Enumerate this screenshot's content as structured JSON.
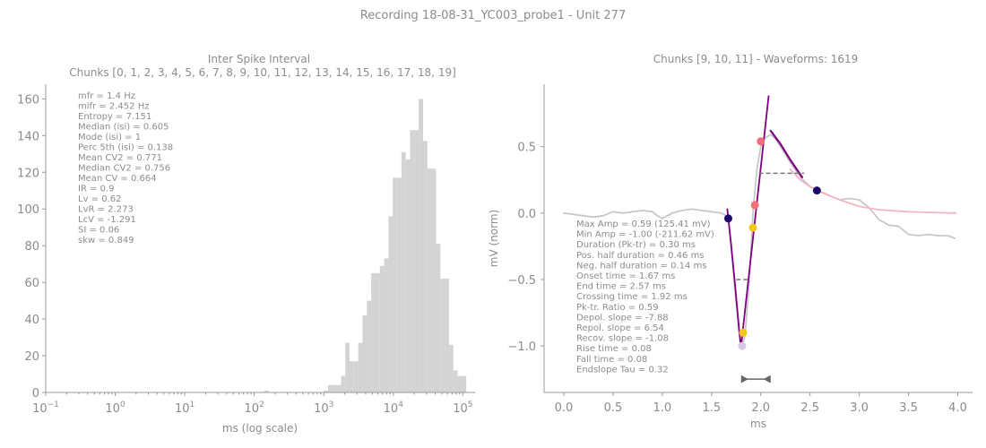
{
  "figure": {
    "suptitle": "Recording 18-08-31_YC003_probe1 - Unit 277"
  },
  "chart_data": [
    {
      "type": "bar",
      "title": "Inter Spike Interval",
      "subtitle": "Chunks [0, 1, 2, 3, 4, 5, 6, 7, 8, 9, 10, 11, 12, 13, 14, 15, 16, 17, 18, 19]",
      "xlabel": "ms (log scale)",
      "ylabel": "",
      "xscale": "log",
      "xlim": [
        0.1,
        150000
      ],
      "ylim": [
        0,
        168
      ],
      "xtick_labels": [
        {
          "base": "10",
          "exp": "−1",
          "value": 0.1
        },
        {
          "base": "10",
          "exp": "0",
          "value": 1
        },
        {
          "base": "10",
          "exp": "1",
          "value": 10
        },
        {
          "base": "10",
          "exp": "2",
          "value": 100
        },
        {
          "base": "10",
          "exp": "3",
          "value": 1000
        },
        {
          "base": "10",
          "exp": "4",
          "value": 10000
        },
        {
          "base": "10",
          "exp": "5",
          "value": 100000
        }
      ],
      "yticks": [
        "0",
        "20",
        "40",
        "60",
        "80",
        "100",
        "120",
        "140",
        "160"
      ],
      "bar_color": "#d3d3d3",
      "stats": [
        "mfr = 1.4 Hz",
        "mifr = 2.452 Hz",
        "Entropy = 7.151",
        "Median (isi) = 0.605",
        "Mode (isi) = 1",
        "Perc 5th (isi) = 0.138",
        "Mean CV2 = 0.771",
        "Median CV2 = 0.756",
        "Mean CV = 0.664",
        "IR = 0.9",
        "Lv = 0.62",
        "LvR = 2.273",
        "LcV = -1.291",
        "SI = 0.06",
        "skw = 0.849"
      ],
      "bins": [
        {
          "lo": 140,
          "hi": 160,
          "count": 1
        },
        {
          "lo": 1000,
          "hi": 1150,
          "count": 1
        },
        {
          "lo": 1150,
          "hi": 1330,
          "count": 4
        },
        {
          "lo": 1330,
          "hi": 1530,
          "count": 4
        },
        {
          "lo": 1530,
          "hi": 1770,
          "count": 4
        },
        {
          "lo": 1770,
          "hi": 2040,
          "count": 9
        },
        {
          "lo": 2040,
          "hi": 2350,
          "count": 27
        },
        {
          "lo": 2350,
          "hi": 2710,
          "count": 17
        },
        {
          "lo": 2710,
          "hi": 3130,
          "count": 17
        },
        {
          "lo": 3130,
          "hi": 3610,
          "count": 27
        },
        {
          "lo": 3610,
          "hi": 4170,
          "count": 42
        },
        {
          "lo": 4170,
          "hi": 4810,
          "count": 50
        },
        {
          "lo": 4810,
          "hi": 5550,
          "count": 65
        },
        {
          "lo": 5550,
          "hi": 6400,
          "count": 65
        },
        {
          "lo": 6400,
          "hi": 7380,
          "count": 69
        },
        {
          "lo": 7380,
          "hi": 8520,
          "count": 73
        },
        {
          "lo": 8520,
          "hi": 9830,
          "count": 96
        },
        {
          "lo": 9830,
          "hi": 11300,
          "count": 117
        },
        {
          "lo": 11300,
          "hi": 13100,
          "count": 117
        },
        {
          "lo": 13100,
          "hi": 15100,
          "count": 131
        },
        {
          "lo": 15100,
          "hi": 17400,
          "count": 127
        },
        {
          "lo": 17400,
          "hi": 20100,
          "count": 143
        },
        {
          "lo": 20100,
          "hi": 23200,
          "count": 143
        },
        {
          "lo": 23200,
          "hi": 26800,
          "count": 160
        },
        {
          "lo": 26800,
          "hi": 30900,
          "count": 137
        },
        {
          "lo": 30900,
          "hi": 35700,
          "count": 122
        },
        {
          "lo": 35700,
          "hi": 41200,
          "count": 122
        },
        {
          "lo": 41200,
          "hi": 47500,
          "count": 81
        },
        {
          "lo": 47500,
          "hi": 54800,
          "count": 62
        },
        {
          "lo": 54800,
          "hi": 63200,
          "count": 62
        },
        {
          "lo": 63200,
          "hi": 73000,
          "count": 26
        },
        {
          "lo": 73000,
          "hi": 84200,
          "count": 12
        },
        {
          "lo": 84200,
          "hi": 97200,
          "count": 9
        },
        {
          "lo": 97200,
          "hi": 112000,
          "count": 9
        }
      ]
    },
    {
      "type": "line",
      "title": "Chunks [9, 10, 11] - Waveforms: 1619",
      "xlabel": "ms",
      "ylabel": "mV (norm)",
      "xlim": [
        -0.2,
        4.15
      ],
      "ylim": [
        -1.35,
        0.97
      ],
      "xticks": [
        "0.0",
        "0.5",
        "1.0",
        "1.5",
        "2.0",
        "2.5",
        "3.0",
        "3.5",
        "4.0"
      ],
      "yticks": [
        "−1.0",
        "−0.5",
        "0.0",
        "0.5"
      ],
      "stats": [
        "Max Amp = 0.59 (125.41 mV)",
        "Min Amp = -1.00 (-211.62 mV)",
        "Duration (Pk-tr) = 0.30 ms",
        "Pos. half duration = 0.46 ms",
        "Neg. half duration = 0.14 ms",
        "Onset time = 1.67 ms",
        "End time = 2.57 ms",
        "Crossing time = 1.92 ms",
        "Pk-tr. Ratio = 0.59",
        "Depol. slope = -7.88",
        "Repol. slope = 6.54",
        "Recov. slope = -1.08",
        "Rise time = 0.08",
        "Fall time = 0.08",
        "Endslope Tau = 0.32"
      ],
      "series": [
        {
          "role": "waveform",
          "color": "#c8c8c8",
          "points": [
            [
              0.0,
              0.0
            ],
            [
              0.1,
              -0.01
            ],
            [
              0.2,
              -0.02
            ],
            [
              0.3,
              -0.03
            ],
            [
              0.4,
              -0.02
            ],
            [
              0.5,
              0.01
            ],
            [
              0.6,
              0.0
            ],
            [
              0.7,
              0.01
            ],
            [
              0.8,
              0.02
            ],
            [
              0.9,
              0.01
            ],
            [
              0.95,
              -0.02
            ],
            [
              1.0,
              -0.04
            ],
            [
              1.05,
              -0.02
            ],
            [
              1.1,
              0.0
            ],
            [
              1.2,
              0.02
            ],
            [
              1.3,
              0.03
            ],
            [
              1.4,
              0.02
            ],
            [
              1.5,
              0.01
            ],
            [
              1.6,
              0.0
            ],
            [
              1.67,
              -0.03
            ],
            [
              1.7,
              -0.25
            ],
            [
              1.74,
              -0.6
            ],
            [
              1.78,
              -0.9
            ],
            [
              1.81,
              -1.0
            ],
            [
              1.84,
              -0.92
            ],
            [
              1.88,
              -0.55
            ],
            [
              1.92,
              0.0
            ],
            [
              1.96,
              0.33
            ],
            [
              2.0,
              0.5
            ],
            [
              2.05,
              0.57
            ],
            [
              2.1,
              0.59
            ],
            [
              2.15,
              0.56
            ],
            [
              2.2,
              0.5
            ],
            [
              2.3,
              0.38
            ],
            [
              2.4,
              0.27
            ],
            [
              2.5,
              0.2
            ],
            [
              2.57,
              0.17
            ],
            [
              2.65,
              0.15
            ],
            [
              2.7,
              0.13
            ],
            [
              2.8,
              0.1
            ],
            [
              2.9,
              0.11
            ],
            [
              3.0,
              0.1
            ],
            [
              3.1,
              0.04
            ],
            [
              3.2,
              -0.05
            ],
            [
              3.3,
              -0.09
            ],
            [
              3.4,
              -0.1
            ],
            [
              3.5,
              -0.16
            ],
            [
              3.6,
              -0.17
            ],
            [
              3.7,
              -0.16
            ],
            [
              3.8,
              -0.17
            ],
            [
              3.9,
              -0.17
            ],
            [
              3.97,
              -0.19
            ]
          ]
        },
        {
          "role": "depolarization-fit",
          "color": "#800080",
          "points": [
            [
              1.66,
              0.03
            ],
            [
              1.7,
              -0.25
            ],
            [
              1.74,
              -0.55
            ],
            [
              1.78,
              -0.88
            ],
            [
              1.8,
              -1.02
            ]
          ]
        },
        {
          "role": "repolarization-fit",
          "color": "#800080",
          "points": [
            [
              1.8,
              -1.0
            ],
            [
              2.08,
              0.88
            ]
          ]
        },
        {
          "role": "recovery-fit",
          "color": "#800080",
          "points": [
            [
              2.1,
              0.62
            ],
            [
              2.2,
              0.52
            ],
            [
              2.3,
              0.4
            ],
            [
              2.42,
              0.27
            ]
          ]
        },
        {
          "role": "endslope-exponential",
          "color": "#f4b6c2",
          "points": [
            [
              2.3,
              0.33
            ],
            [
              2.4,
              0.25
            ],
            [
              2.5,
              0.2
            ],
            [
              2.6,
              0.16
            ],
            [
              2.8,
              0.1
            ],
            [
              3.0,
              0.05
            ],
            [
              3.2,
              0.025
            ],
            [
              3.5,
              0.01
            ],
            [
              3.8,
              0.003
            ],
            [
              3.98,
              0.0
            ]
          ]
        }
      ],
      "markers": [
        {
          "x": 1.67,
          "y": -0.04,
          "color": "#1c0a6a"
        },
        {
          "x": 1.81,
          "y": -1.0,
          "color": "#d8c8e8"
        },
        {
          "x": 1.82,
          "y": -0.9,
          "color": "#f5c518"
        },
        {
          "x": 1.92,
          "y": -0.11,
          "color": "#f5c518"
        },
        {
          "x": 1.94,
          "y": 0.06,
          "color": "#f0707a"
        },
        {
          "x": 2.0,
          "y": 0.54,
          "color": "#f0707a"
        },
        {
          "x": 2.57,
          "y": 0.17,
          "color": "#1c0a6a"
        }
      ],
      "half_duration_lines": [
        {
          "x0": 1.75,
          "x1": 1.88,
          "y": -0.5
        },
        {
          "x0": 1.98,
          "x1": 2.44,
          "y": 0.3
        }
      ],
      "duration_arrow": {
        "x0": 1.8,
        "x1": 2.1,
        "y": -1.25
      }
    }
  ]
}
